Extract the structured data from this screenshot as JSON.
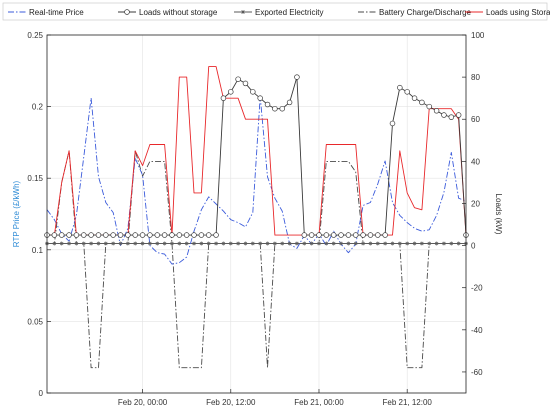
{
  "chart_data": {
    "type": "line",
    "title": "",
    "legend_position": "top",
    "grid": true,
    "x_ticks": [
      "Feb 20, 00:00",
      "Feb 20, 12:00",
      "Feb 21, 00:00",
      "Feb 21, 12:00"
    ],
    "x_tick_positions": [
      18,
      30,
      42,
      54
    ],
    "xlim": [
      5,
      62
    ],
    "y_left": {
      "label": "RTP Price (£/kWh)",
      "lim": [
        0,
        0.25
      ],
      "ticks": [
        0,
        0.05,
        0.1,
        0.15,
        0.2,
        0.25
      ],
      "tick_labels": [
        "0",
        "0.05",
        "0.1",
        "0.15",
        "0.2",
        "0.25"
      ],
      "color": "#2e8bd6"
    },
    "y_right": {
      "label": "Loads (kW)",
      "lim": [
        -70,
        100
      ],
      "ticks": [
        -60,
        -40,
        -20,
        0,
        20,
        40,
        60,
        80,
        100
      ],
      "tick_labels": [
        "-60",
        "-40",
        "-20",
        "0",
        "20",
        "40",
        "60",
        "80",
        "100"
      ],
      "color": "#333333"
    },
    "series": [
      {
        "name": "Real-time Price",
        "axis": "left",
        "color": "#3b5bdb",
        "dash": "6 2 1.5 2",
        "marker": "none",
        "x": [
          5,
          6,
          7,
          8,
          9,
          10,
          11,
          12,
          13,
          14,
          15,
          16,
          17,
          18,
          19,
          20,
          21,
          22,
          23,
          24,
          25,
          26,
          27,
          28,
          29,
          30,
          31,
          32,
          33,
          34,
          35,
          36,
          37,
          38,
          39,
          40,
          41,
          42,
          43,
          44,
          45,
          46,
          47,
          48,
          49,
          50,
          51,
          52,
          53,
          54,
          55,
          56,
          57,
          58,
          59,
          60,
          61,
          62
        ],
        "y": [
          0.128,
          0.121,
          0.111,
          0.106,
          0.124,
          0.165,
          0.206,
          0.151,
          0.133,
          0.126,
          0.103,
          0.115,
          0.164,
          0.152,
          0.103,
          0.098,
          0.097,
          0.09,
          0.091,
          0.095,
          0.113,
          0.128,
          0.137,
          0.132,
          0.127,
          0.121,
          0.119,
          0.116,
          0.126,
          0.207,
          0.151,
          0.136,
          0.127,
          0.104,
          0.101,
          0.11,
          0.104,
          0.111,
          0.103,
          0.113,
          0.104,
          0.098,
          0.104,
          0.131,
          0.133,
          0.146,
          0.162,
          0.133,
          0.124,
          0.119,
          0.115,
          0.113,
          0.114,
          0.124,
          0.14,
          0.168,
          0.136,
          0.134
        ]
      },
      {
        "name": "Loads without storage",
        "axis": "right",
        "color": "#3a3a3a",
        "dash": "",
        "marker": "circle",
        "x": [
          5,
          6,
          7,
          8,
          9,
          10,
          11,
          12,
          13,
          14,
          15,
          16,
          17,
          18,
          19,
          20,
          21,
          22,
          23,
          24,
          25,
          26,
          27,
          28,
          29,
          30,
          31,
          32,
          33,
          34,
          35,
          36,
          37,
          38,
          39,
          40,
          41,
          42,
          43,
          44,
          45,
          46,
          47,
          48,
          49,
          50,
          51,
          52,
          53,
          54,
          55,
          56,
          57,
          58,
          59,
          60,
          61,
          62
        ],
        "y": [
          5,
          5,
          5,
          5,
          5,
          5,
          5,
          5,
          5,
          5,
          5,
          5,
          5,
          5,
          5,
          5,
          5,
          5,
          5,
          5,
          5,
          5,
          5,
          5,
          70,
          73,
          79,
          77,
          73,
          70,
          67,
          65,
          65,
          68,
          80,
          5,
          5,
          5,
          5,
          5,
          5,
          5,
          5,
          5,
          5,
          5,
          5,
          58,
          75,
          73,
          70,
          68,
          66,
          64,
          62,
          61,
          62,
          5
        ]
      },
      {
        "name": "Exported Electricity",
        "axis": "right",
        "color": "#5a5a5a",
        "dash": "",
        "marker": "star",
        "x": [
          5,
          6,
          7,
          8,
          9,
          10,
          11,
          12,
          13,
          14,
          15,
          16,
          17,
          18,
          19,
          20,
          21,
          22,
          23,
          24,
          25,
          26,
          27,
          28,
          29,
          30,
          31,
          32,
          33,
          34,
          35,
          36,
          37,
          38,
          39,
          40,
          41,
          42,
          43,
          44,
          45,
          46,
          47,
          48,
          49,
          50,
          51,
          52,
          53,
          54,
          55,
          56,
          57,
          58,
          59,
          60,
          61,
          62
        ],
        "y": [
          1,
          1,
          1,
          1,
          1,
          1,
          1,
          1,
          1,
          1,
          1,
          1,
          1,
          1,
          1,
          1,
          1,
          1,
          1,
          1,
          1,
          1,
          1,
          1,
          1,
          1,
          1,
          1,
          1,
          1,
          1,
          1,
          1,
          1,
          1,
          1,
          1,
          1,
          1,
          1,
          1,
          1,
          1,
          1,
          1,
          1,
          1,
          1,
          1,
          1,
          1,
          1,
          1,
          1,
          1,
          1,
          1,
          1
        ]
      },
      {
        "name": "Battery Charge/Discharge",
        "axis": "right",
        "color": "#4a4a4a",
        "dash": "6 2 1.5 2",
        "marker": "none",
        "x": [
          5,
          6,
          7,
          8,
          9,
          10,
          11,
          12,
          13,
          14,
          15,
          16,
          17,
          18,
          19,
          20,
          21,
          22,
          23,
          24,
          25,
          26,
          27,
          28,
          29,
          30,
          31,
          32,
          33,
          34,
          35,
          36,
          37,
          38,
          39,
          40,
          41,
          42,
          43,
          44,
          45,
          46,
          47,
          48,
          49,
          50,
          51,
          52,
          53,
          54,
          55,
          56,
          57,
          58,
          59,
          60,
          61,
          62
        ],
        "y": [
          1,
          1,
          30,
          45,
          1,
          1,
          -58,
          -58,
          1,
          1,
          1,
          1,
          45,
          33,
          40,
          40,
          40,
          1,
          -58,
          -58,
          -58,
          -58,
          1,
          1,
          1,
          1,
          1,
          1,
          1,
          1,
          -58,
          1,
          1,
          1,
          1,
          1,
          1,
          1,
          40,
          40,
          40,
          40,
          35,
          1,
          1,
          1,
          1,
          1,
          1,
          -58,
          -58,
          -58,
          1,
          1,
          1,
          1,
          1,
          1
        ]
      },
      {
        "name": "Loads using Storage",
        "axis": "right",
        "color": "#e8282b",
        "dash": "",
        "marker": "none",
        "x": [
          5,
          6,
          7,
          8,
          9,
          10,
          11,
          12,
          13,
          14,
          15,
          16,
          17,
          18,
          19,
          20,
          21,
          22,
          23,
          24,
          25,
          26,
          27,
          28,
          29,
          30,
          31,
          32,
          33,
          34,
          35,
          36,
          37,
          38,
          39,
          40,
          41,
          42,
          43,
          44,
          45,
          46,
          47,
          48,
          49,
          50,
          51,
          52,
          53,
          54,
          55,
          56,
          57,
          58,
          59,
          60,
          61,
          62
        ],
        "y": [
          5,
          5,
          30,
          45,
          5,
          5,
          5,
          5,
          5,
          5,
          5,
          5,
          45,
          38,
          48,
          48,
          48,
          5,
          80,
          80,
          25,
          25,
          85,
          85,
          70,
          70,
          70,
          60,
          60,
          60,
          60,
          5,
          5,
          5,
          5,
          5,
          5,
          5,
          48,
          48,
          48,
          48,
          48,
          5,
          5,
          5,
          5,
          5,
          45,
          25,
          18,
          17,
          65,
          65,
          65,
          65,
          60,
          5
        ]
      }
    ]
  }
}
